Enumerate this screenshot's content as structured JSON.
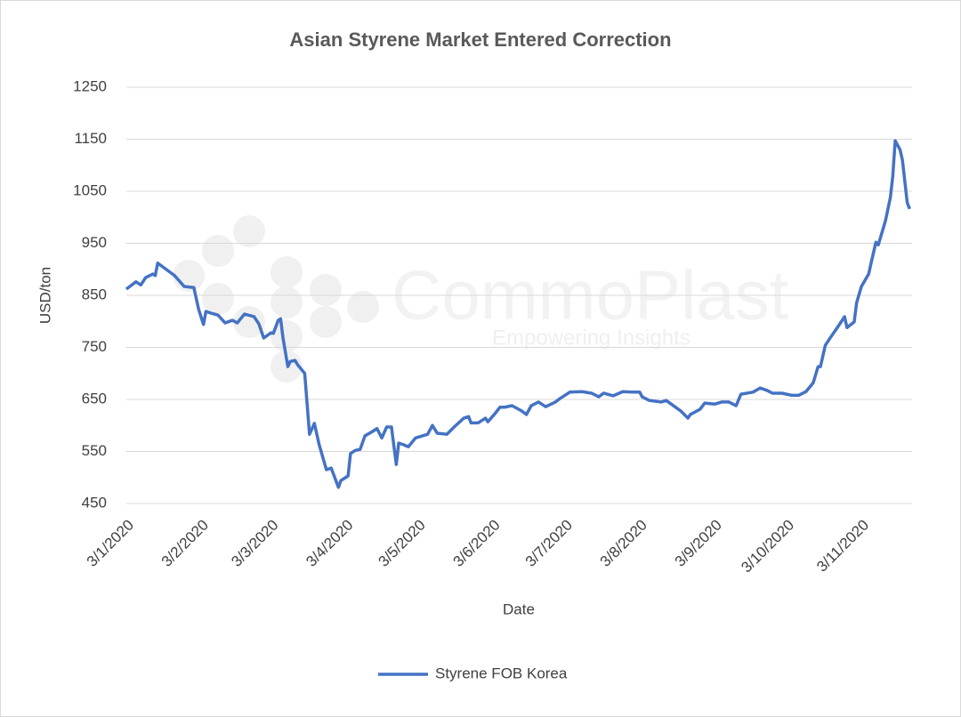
{
  "chart_data": {
    "type": "line",
    "title": "Asian Styrene Market Entered Correction",
    "x_label": "Date",
    "y_label": "USD/ton",
    "x": [
      "2020-01-03",
      "2020-01-07",
      "2020-01-09",
      "2020-01-11",
      "2020-01-14",
      "2020-01-15",
      "2020-01-16",
      "2020-01-23",
      "2020-01-27",
      "2020-01-31",
      "2020-02-02",
      "2020-02-04",
      "2020-02-05",
      "2020-02-07",
      "2020-02-10",
      "2020-02-13",
      "2020-02-16",
      "2020-02-18",
      "2020-02-21",
      "2020-02-25",
      "2020-02-27",
      "2020-02-29",
      "2020-03-03",
      "2020-03-04",
      "2020-03-06",
      "2020-03-07",
      "2020-03-08",
      "2020-03-10",
      "2020-03-11",
      "2020-03-13",
      "2020-03-14",
      "2020-03-17",
      "2020-03-19",
      "2020-03-21",
      "2020-03-23",
      "2020-03-26",
      "2020-03-28",
      "2020-03-31",
      "2020-04-01",
      "2020-04-04",
      "2020-04-05",
      "2020-04-07",
      "2020-04-09",
      "2020-04-11",
      "2020-04-14",
      "2020-04-16",
      "2020-04-18",
      "2020-04-20",
      "2020-04-22",
      "2020-04-24",
      "2020-04-25",
      "2020-04-27",
      "2020-04-29",
      "2020-05-02",
      "2020-05-07",
      "2020-05-09",
      "2020-05-11",
      "2020-05-15",
      "2020-05-18",
      "2020-05-22",
      "2020-05-24",
      "2020-05-25",
      "2020-05-28",
      "2020-05-31",
      "2020-06-01",
      "2020-06-04",
      "2020-06-06",
      "2020-06-08",
      "2020-06-11",
      "2020-06-15",
      "2020-06-17",
      "2020-06-19",
      "2020-06-22",
      "2020-06-25",
      "2020-06-29",
      "2020-07-01",
      "2020-07-05",
      "2020-07-10",
      "2020-07-14",
      "2020-07-17",
      "2020-07-19",
      "2020-07-23",
      "2020-07-27",
      "2020-07-31",
      "2020-08-03",
      "2020-08-04",
      "2020-08-07",
      "2020-08-12",
      "2020-08-14",
      "2020-08-17",
      "2020-08-20",
      "2020-08-23",
      "2020-08-24",
      "2020-08-28",
      "2020-08-30",
      "2020-09-03",
      "2020-09-06",
      "2020-09-09",
      "2020-09-12",
      "2020-09-14",
      "2020-09-19",
      "2020-09-22",
      "2020-09-25",
      "2020-09-27",
      "2020-10-01",
      "2020-10-05",
      "2020-10-08",
      "2020-10-11",
      "2020-10-14",
      "2020-10-16",
      "2020-10-17",
      "2020-10-19",
      "2020-10-21",
      "2020-10-24",
      "2020-10-27",
      "2020-10-28",
      "2020-10-31",
      "2020-11-01",
      "2020-11-03",
      "2020-11-06",
      "2020-11-07",
      "2020-11-09",
      "2020-11-10",
      "2020-11-13",
      "2020-11-15",
      "2020-11-16",
      "2020-11-17",
      "2020-11-19",
      "2020-11-20",
      "2020-11-22",
      "2020-11-23"
    ],
    "series": [
      {
        "name": "Styrene FOB Korea",
        "color": "#4472c4",
        "values": [
          862,
          876,
          870,
          884,
          891,
          888,
          912,
          888,
          867,
          865,
          823,
          794,
          819,
          816,
          812,
          797,
          802,
          797,
          814,
          809,
          795,
          768,
          778,
          777,
          802,
          805,
          768,
          713,
          723,
          725,
          717,
          700,
          583,
          604,
          563,
          515,
          518,
          481,
          494,
          503,
          546,
          552,
          554,
          580,
          588,
          594,
          576,
          597,
          597,
          525,
          566,
          563,
          559,
          576,
          583,
          600,
          585,
          583,
          597,
          614,
          617,
          605,
          605,
          614,
          607,
          623,
          635,
          635,
          638,
          628,
          621,
          638,
          645,
          636,
          645,
          652,
          664,
          665,
          662,
          655,
          662,
          657,
          665,
          664,
          664,
          655,
          648,
          645,
          648,
          638,
          628,
          614,
          621,
          631,
          643,
          641,
          645,
          645,
          638,
          660,
          664,
          672,
          667,
          662,
          662,
          658,
          658,
          665,
          682,
          713,
          713,
          754,
          768,
          788,
          809,
          788,
          799,
          836,
          867,
          891,
          912,
          952,
          947,
          994,
          1038,
          1079,
          1147,
          1130,
          1110,
          1028,
          1016
        ]
      }
    ],
    "xlim": [
      "2020-01-03",
      "2020-11-24"
    ],
    "xticks": [
      {
        "value": "2020-01-03",
        "label": "3/1/2020"
      },
      {
        "value": "2020-02-03",
        "label": "3/2/2020"
      },
      {
        "value": "2020-03-03",
        "label": "3/3/2020"
      },
      {
        "value": "2020-04-03",
        "label": "3/4/2020"
      },
      {
        "value": "2020-05-03",
        "label": "3/5/2020"
      },
      {
        "value": "2020-06-03",
        "label": "3/6/2020"
      },
      {
        "value": "2020-07-03",
        "label": "3/7/2020"
      },
      {
        "value": "2020-08-03",
        "label": "3/8/2020"
      },
      {
        "value": "2020-09-03",
        "label": "3/9/2020"
      },
      {
        "value": "2020-10-03",
        "label": "3/10/2020"
      },
      {
        "value": "2020-11-03",
        "label": "3/11/2020"
      }
    ],
    "ylim": [
      450,
      1250
    ],
    "yticks": [
      450,
      550,
      650,
      750,
      850,
      950,
      1050,
      1150,
      1250
    ],
    "grid": true,
    "legend": "bottom"
  },
  "watermark": {
    "title": "CommoPlast",
    "subtitle": "Empowering Insights"
  }
}
